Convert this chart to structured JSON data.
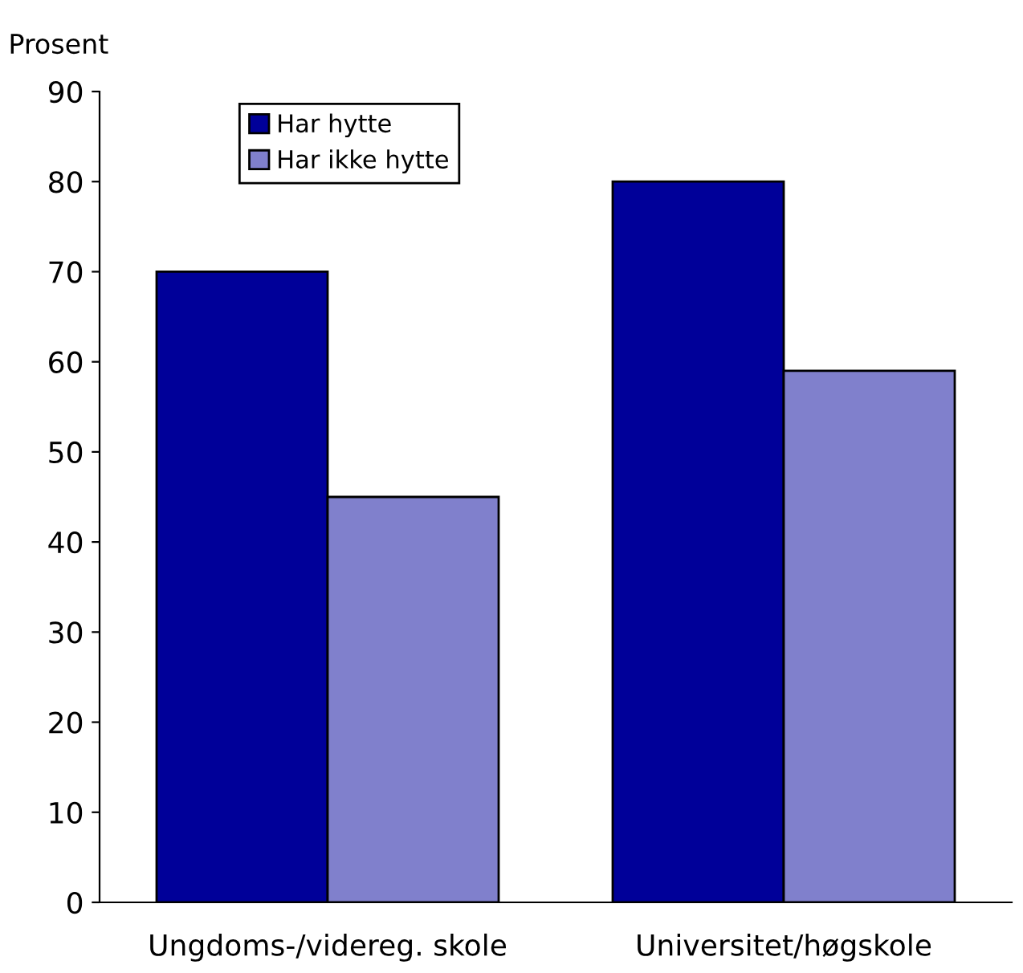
{
  "chart_data": {
    "type": "bar",
    "ylabel": "Prosent",
    "categories": [
      "Ungdoms-/videreg. skole",
      "Universitet/høgskole"
    ],
    "series": [
      {
        "name": "Har hytte",
        "color": "#000099",
        "values": [
          70,
          80
        ]
      },
      {
        "name": "Har ikke hytte",
        "color": "#8080cc",
        "values": [
          45,
          59
        ]
      }
    ],
    "ylim": [
      0,
      90
    ],
    "yticks": [
      0,
      10,
      20,
      30,
      40,
      50,
      60,
      70,
      80,
      90
    ],
    "grid": false,
    "legend": "top left"
  }
}
